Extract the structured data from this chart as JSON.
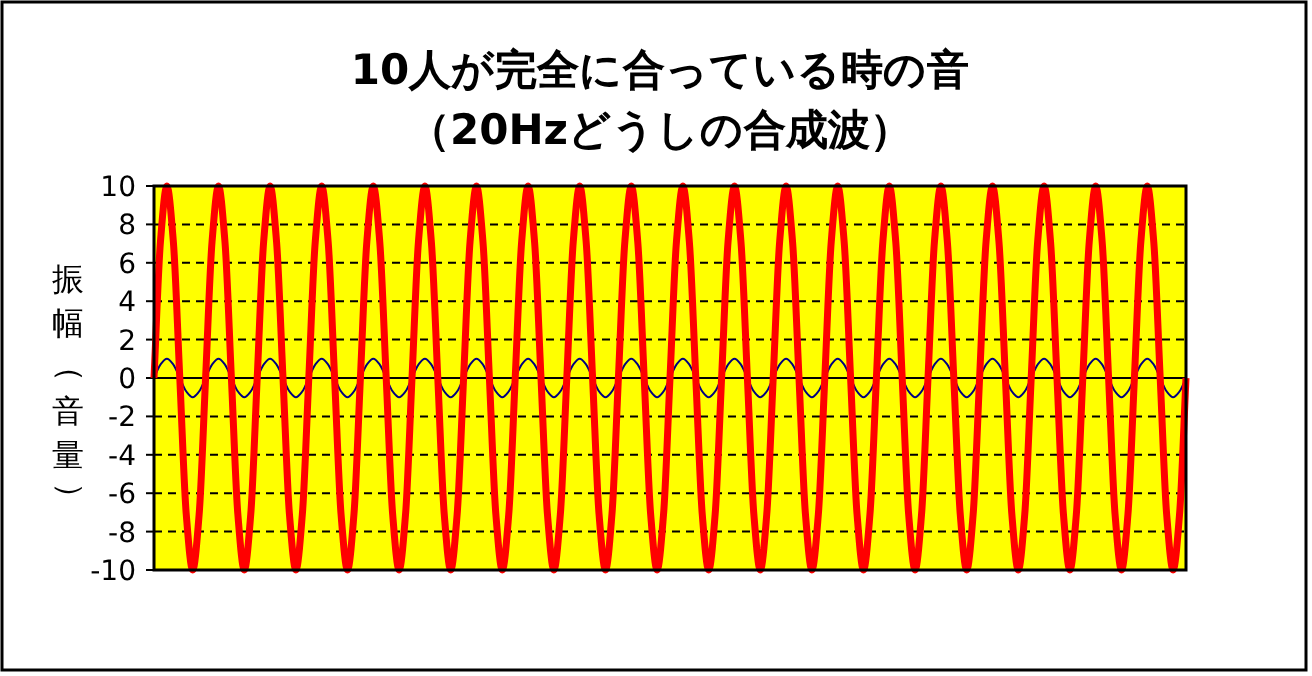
{
  "chart_data": {
    "type": "line",
    "title": "10人が完全に合っている時の音",
    "subtitle": "（20Hzどうしの合成波）",
    "ylabel": "振幅（音量）",
    "categories": [
      null,
      null,
      null,
      null,
      null,
      null,
      null,
      null,
      null,
      null,
      null,
      null,
      null,
      null,
      null,
      null,
      null,
      null,
      null,
      null,
      null,
      null,
      null,
      null,
      null,
      null,
      null,
      null,
      null,
      null,
      null,
      null,
      null,
      null,
      null,
      null,
      null,
      null,
      null,
      null,
      null,
      null,
      null,
      null,
      null,
      null,
      null,
      null,
      null,
      null,
      null,
      null,
      null,
      null,
      null,
      null,
      null,
      null,
      null,
      null,
      null,
      null,
      null,
      null,
      null,
      null,
      null,
      null,
      null,
      null,
      null,
      null,
      null,
      null,
      null,
      null,
      null,
      null,
      null,
      null,
      null,
      null,
      null,
      null,
      null,
      null,
      null,
      null,
      null,
      null,
      null,
      null,
      null,
      null,
      null,
      null,
      null,
      null,
      null,
      null,
      null,
      null,
      null,
      null,
      null,
      null,
      null,
      null,
      null,
      null,
      null,
      null,
      null,
      null,
      null,
      null,
      null,
      null,
      null,
      null,
      null,
      null,
      null,
      null,
      null,
      null,
      null,
      null,
      null,
      null,
      null,
      null,
      null,
      null,
      null,
      null,
      null,
      null,
      null,
      null,
      null,
      null,
      null,
      null,
      null,
      null,
      null,
      null,
      null,
      null,
      null,
      null,
      null,
      null,
      null,
      null,
      null,
      null,
      null,
      null,
      null
    ],
    "series": [
      {
        "color": "#000080",
        "values": [
          0,
          0.7,
          1,
          0.7,
          0,
          -0.7,
          -1,
          -0.7,
          0,
          0.7,
          1,
          0.7,
          0,
          -0.7,
          -1,
          -0.7,
          0,
          0.7,
          1,
          0.7,
          0,
          -0.7,
          -1,
          -0.7,
          0,
          0.7,
          1,
          0.7,
          0,
          -0.7,
          -1,
          -0.7,
          0,
          0.7,
          1,
          0.7,
          0,
          -0.7,
          -1,
          -0.7,
          0,
          0.7,
          1,
          0.7,
          0,
          -0.7,
          -1,
          -0.7,
          0,
          0.7,
          1,
          0.7,
          0,
          -0.7,
          -1,
          -0.7,
          0,
          0.7,
          1,
          0.7,
          0,
          -0.7,
          -1,
          -0.7,
          0,
          0.7,
          1,
          0.7,
          0,
          -0.7,
          -1,
          -0.7,
          0,
          0.7,
          1,
          0.7,
          0,
          -0.7,
          -1,
          -0.7,
          0,
          0.7,
          1,
          0.7,
          0,
          -0.7,
          -1,
          -0.7,
          0,
          0.7,
          1,
          0.7,
          0,
          -0.7,
          -1,
          -0.7,
          0,
          0.7,
          1,
          0.7,
          0,
          -0.7,
          -1,
          -0.7,
          0,
          0.7,
          1,
          0.7,
          0,
          -0.7,
          -1,
          -0.7,
          0,
          0.7,
          1,
          0.7,
          0,
          -0.7,
          -1,
          -0.7,
          0,
          0.7,
          1,
          0.7,
          0,
          -0.7,
          -1,
          -0.7,
          0,
          0.7,
          1,
          0.7,
          0,
          -0.7,
          -1,
          -0.7,
          0,
          0.7,
          1,
          0.7,
          0,
          -0.7,
          -1,
          -0.7,
          0,
          0.7,
          1,
          0.7,
          0,
          -0.7,
          -1,
          -0.7,
          0,
          0.7,
          1,
          0.7,
          0,
          -0.7,
          -1,
          -0.7,
          0
        ]
      },
      {
        "color": "#ff0000",
        "values": [
          0,
          7.1,
          10,
          7.1,
          0,
          -7.1,
          -10,
          -7.1,
          0,
          7.1,
          10,
          7.1,
          0,
          -7.1,
          -10,
          -7.1,
          0,
          7.1,
          10,
          7.1,
          0,
          -7.1,
          -10,
          -7.1,
          0,
          7.1,
          10,
          7.1,
          0,
          -7.1,
          -10,
          -7.1,
          0,
          7.1,
          10,
          7.1,
          0,
          -7.1,
          -10,
          -7.1,
          0,
          7.1,
          10,
          7.1,
          0,
          -7.1,
          -10,
          -7.1,
          0,
          7.1,
          10,
          7.1,
          0,
          -7.1,
          -10,
          -7.1,
          0,
          7.1,
          10,
          7.1,
          0,
          -7.1,
          -10,
          -7.1,
          0,
          7.1,
          10,
          7.1,
          0,
          -7.1,
          -10,
          -7.1,
          0,
          7.1,
          10,
          7.1,
          0,
          -7.1,
          -10,
          -7.1,
          0,
          7.1,
          10,
          7.1,
          0,
          -7.1,
          -10,
          -7.1,
          0,
          7.1,
          10,
          7.1,
          0,
          -7.1,
          -10,
          -7.1,
          0,
          7.1,
          10,
          7.1,
          0,
          -7.1,
          -10,
          -7.1,
          0,
          7.1,
          10,
          7.1,
          0,
          -7.1,
          -10,
          -7.1,
          0,
          7.1,
          10,
          7.1,
          0,
          -7.1,
          -10,
          -7.1,
          0,
          7.1,
          10,
          7.1,
          0,
          -7.1,
          -10,
          -7.1,
          0,
          7.1,
          10,
          7.1,
          0,
          -7.1,
          -10,
          -7.1,
          0,
          7.1,
          10,
          7.1,
          0,
          -7.1,
          -10,
          -7.1,
          0,
          7.1,
          10,
          7.1,
          0,
          -7.1,
          -10,
          -7.1,
          0,
          7.1,
          10,
          7.1,
          0,
          -7.1,
          -10,
          -7.1,
          0
        ]
      }
    ],
    "ylim": [
      -10,
      10
    ],
    "yticks": [
      -10,
      -8,
      -6,
      -4,
      -2,
      0,
      2,
      4,
      6,
      8,
      10
    ],
    "grid": "y",
    "marker": "none",
    "line_style": "solid",
    "tick_labels": "y"
  }
}
